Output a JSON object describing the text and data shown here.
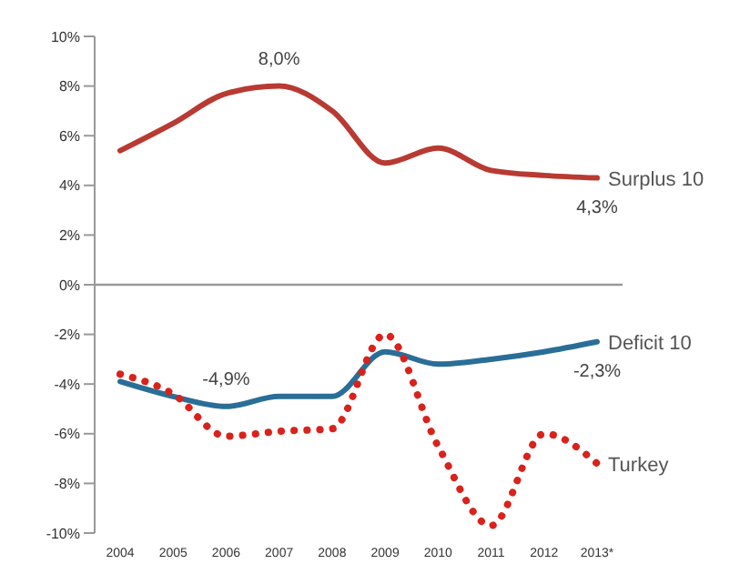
{
  "chart_data": {
    "type": "line",
    "categories": [
      "2004",
      "2005",
      "2006",
      "2007",
      "2008",
      "2009",
      "2010",
      "2011",
      "2012",
      "2013*"
    ],
    "series": [
      {
        "name": "Surplus 10",
        "color": "#b83a32",
        "line_style": "solid",
        "values": [
          5.4,
          6.5,
          7.7,
          8.0,
          7.0,
          4.9,
          5.5,
          4.6,
          4.4,
          4.3
        ]
      },
      {
        "name": "Deficit 10",
        "color": "#2a6e98",
        "line_style": "solid",
        "values": [
          -3.9,
          -4.5,
          -4.9,
          -4.5,
          -4.5,
          -2.7,
          -3.2,
          -3.0,
          -2.7,
          -2.3
        ]
      },
      {
        "name": "Turkey",
        "color": "#d9221c",
        "line_style": "dotted",
        "values": [
          -3.6,
          -4.4,
          -6.1,
          -5.9,
          -5.8,
          -2.0,
          -6.5,
          -9.7,
          -6.0,
          -7.2
        ]
      }
    ],
    "ylim": [
      -10,
      10
    ],
    "yticks": [
      {
        "value": -10,
        "label": "-10%"
      },
      {
        "value": -8,
        "label": "-8%"
      },
      {
        "value": -6,
        "label": "-6%"
      },
      {
        "value": -4,
        "label": "-4%"
      },
      {
        "value": -2,
        "label": "-2%"
      },
      {
        "value": 0,
        "label": "0%"
      },
      {
        "value": 2,
        "label": "2%"
      },
      {
        "value": 4,
        "label": "4%"
      },
      {
        "value": 6,
        "label": "6%"
      },
      {
        "value": 8,
        "label": "8%"
      },
      {
        "value": 10,
        "label": "10%"
      }
    ],
    "ref_lines": [
      {
        "axis": "y",
        "value": 0,
        "color": "#999999"
      }
    ],
    "annotations": [
      {
        "text": "8,0%",
        "x": "2007",
        "y": 8.0
      },
      {
        "text": "4,3%",
        "x": "2013*",
        "y": 4.3
      },
      {
        "text": "-4,9%",
        "x": "2006",
        "y": -4.9
      },
      {
        "text": "-2,3%",
        "x": "2013*",
        "y": -2.3
      }
    ],
    "grid": false,
    "legend": false,
    "marker": "none"
  }
}
